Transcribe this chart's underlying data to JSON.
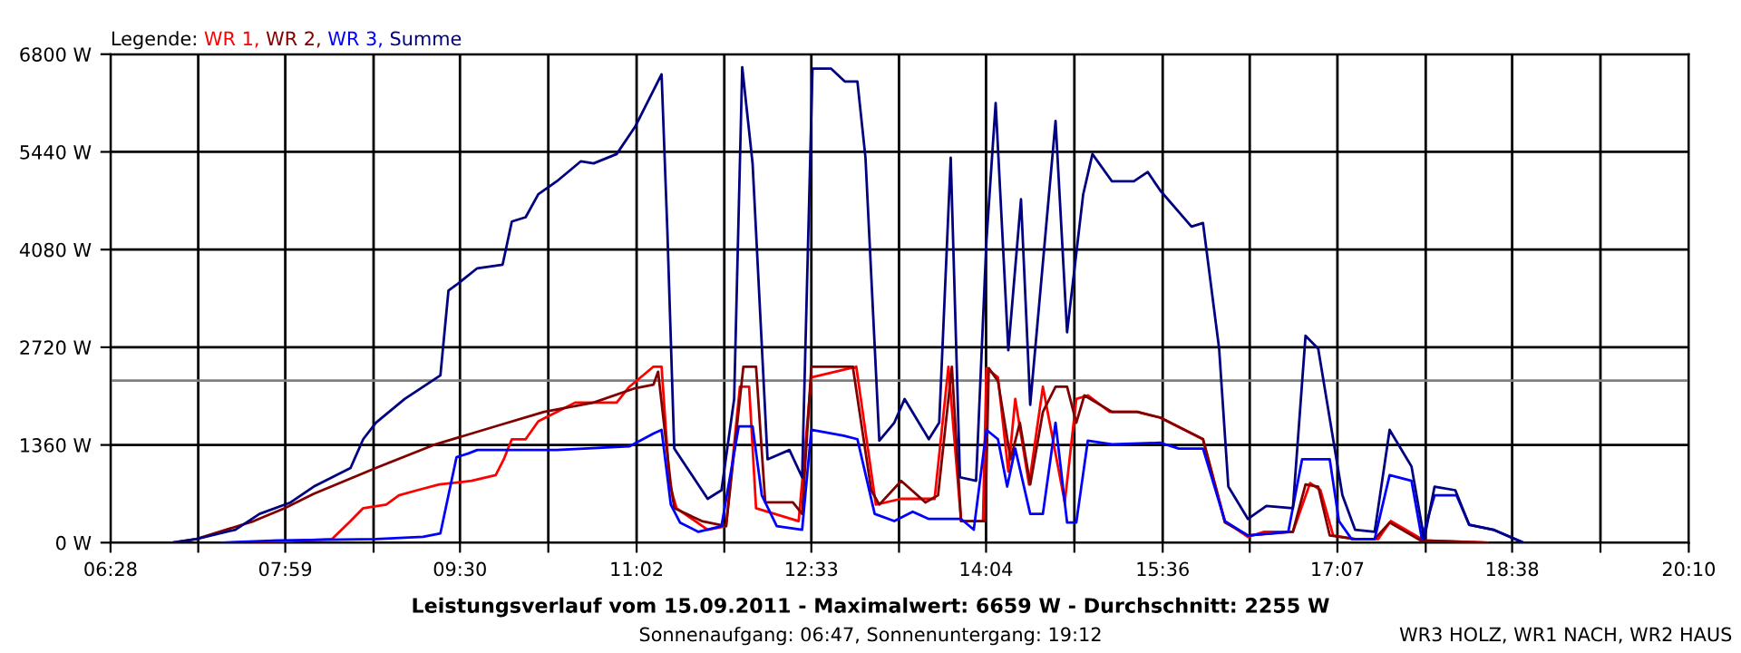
{
  "chart_data": {
    "type": "line",
    "title": "Leistungsverlauf vom 15.09.2011 - Maximalwert: 6659 W - Durchschnitt: 2255 W",
    "subtitle": "Sonnenaufgang: 06:47, Sonnenuntergang: 19:12",
    "annotations": [
      "WR3 HOLZ, WR1 NACH, WR2 HAUS"
    ],
    "legend_title": "Legende:",
    "legend": "top left",
    "grid": true,
    "marker": "none",
    "line_style": "solid",
    "xlim": [
      6.4667,
      20.1667
    ],
    "xticks": [
      {
        "value": 6.4667,
        "label": "06:28"
      },
      {
        "value": 7.2278,
        "label": null
      },
      {
        "value": 7.9833,
        "label": "07:59"
      },
      {
        "value": 8.75,
        "label": null
      },
      {
        "value": 9.5,
        "label": "09:30"
      },
      {
        "value": 10.2667,
        "label": null
      },
      {
        "value": 11.0333,
        "label": "11:02"
      },
      {
        "value": 11.7944,
        "label": null
      },
      {
        "value": 12.55,
        "label": "12:33"
      },
      {
        "value": 13.3111,
        "label": null
      },
      {
        "value": 14.0667,
        "label": "14:04"
      },
      {
        "value": 14.8333,
        "label": null
      },
      {
        "value": 15.6,
        "label": "15:36"
      },
      {
        "value": 16.3556,
        "label": null
      },
      {
        "value": 17.1167,
        "label": "17:07"
      },
      {
        "value": 17.8833,
        "label": null
      },
      {
        "value": 18.6333,
        "label": "18:38"
      },
      {
        "value": 19.4,
        "label": null
      },
      {
        "value": 20.1667,
        "label": "20:10"
      }
    ],
    "ylim": [
      0,
      6800
    ],
    "yticks": [
      {
        "value": 0,
        "label": "0 W"
      },
      {
        "value": 1360,
        "label": "1360 W"
      },
      {
        "value": 2720,
        "label": "2720 W"
      },
      {
        "value": 4080,
        "label": "4080 W"
      },
      {
        "value": 5440,
        "label": "5440 W"
      },
      {
        "value": 6800,
        "label": "6800 W"
      }
    ],
    "ref_lines": [
      {
        "axis": "y",
        "value": 2255,
        "color": "#808080"
      }
    ],
    "series": [
      {
        "name": "WR 1,",
        "color": "#ff0000",
        "x": [
          7.71,
          8.39,
          8.55,
          8.66,
          8.86,
          8.97,
          9.13,
          9.32,
          9.6,
          9.81,
          9.88,
          9.95,
          10.07,
          10.18,
          10.34,
          10.5,
          10.86,
          10.97,
          11.18,
          11.25,
          11.32,
          11.38,
          11.65,
          11.81,
          11.93,
          12.01,
          12.07,
          12.44,
          12.55,
          12.94,
          13.11,
          13.33,
          13.62,
          13.74,
          13.85,
          14.04,
          14.07,
          14.17,
          14.26,
          14.32,
          14.44,
          14.56,
          14.75,
          14.85,
          14.95,
          15.14,
          15.38,
          15.58,
          15.79,
          15.95,
          16.14,
          16.34,
          16.48,
          16.73,
          16.88,
          16.97,
          17.08,
          17.27,
          17.47,
          17.58,
          17.87,
          18.42
        ],
        "values": [
          0,
          50,
          300,
          480,
          530,
          660,
          730,
          810,
          860,
          940,
          1160,
          1440,
          1440,
          1690,
          1820,
          1950,
          1950,
          2170,
          2450,
          2450,
          810,
          480,
          180,
          230,
          2170,
          2170,
          480,
          300,
          2300,
          2450,
          530,
          610,
          610,
          2450,
          300,
          300,
          2430,
          2300,
          990,
          2000,
          810,
          2170,
          560,
          2000,
          2050,
          1820,
          1820,
          1740,
          1570,
          1440,
          300,
          80,
          150,
          150,
          830,
          730,
          100,
          50,
          50,
          300,
          30,
          0
        ]
      },
      {
        "name": "WR 2,",
        "color": "#800000",
        "x": [
          7.0,
          7.21,
          7.71,
          7.98,
          8.23,
          8.77,
          9.29,
          9.81,
          10.23,
          10.66,
          11.02,
          11.18,
          11.22,
          11.33,
          11.36,
          11.6,
          11.81,
          11.96,
          12.07,
          12.15,
          12.39,
          12.47,
          12.55,
          12.91,
          13.07,
          13.14,
          13.33,
          13.54,
          13.65,
          13.77,
          13.85,
          14.06,
          14.09,
          14.17,
          14.28,
          14.36,
          14.45,
          14.56,
          14.67,
          14.77,
          14.85,
          14.92,
          15.16,
          15.38,
          15.58,
          15.95,
          16.14,
          16.34,
          16.73,
          16.84,
          16.95,
          17.05,
          17.27,
          17.44,
          17.57,
          17.84,
          18.42
        ],
        "values": [
          0,
          50,
          300,
          480,
          680,
          1040,
          1370,
          1620,
          1820,
          1950,
          2150,
          2200,
          2380,
          810,
          480,
          300,
          230,
          2450,
          2450,
          560,
          560,
          400,
          2450,
          2450,
          730,
          530,
          860,
          560,
          660,
          2450,
          300,
          300,
          2430,
          2250,
          1160,
          1670,
          810,
          1820,
          2170,
          2170,
          1670,
          2050,
          1820,
          1820,
          1740,
          1440,
          280,
          100,
          150,
          810,
          780,
          100,
          50,
          50,
          280,
          30,
          0
        ]
      },
      {
        "name": "WR 3,",
        "color": "#0000ff",
        "x": [
          7.43,
          7.92,
          8.77,
          9.18,
          9.33,
          9.47,
          9.57,
          9.65,
          10.34,
          10.97,
          11.18,
          11.25,
          11.33,
          11.41,
          11.57,
          11.77,
          11.92,
          12.04,
          12.12,
          12.25,
          12.47,
          12.55,
          12.83,
          12.95,
          13.1,
          13.27,
          13.43,
          13.57,
          13.85,
          13.96,
          14.07,
          14.17,
          14.25,
          14.32,
          14.45,
          14.56,
          14.67,
          14.77,
          14.85,
          14.95,
          15.16,
          15.58,
          15.74,
          15.95,
          16.14,
          16.34,
          16.69,
          16.81,
          17.05,
          17.13,
          17.24,
          17.44,
          17.57,
          17.76,
          17.85,
          17.96,
          18.15,
          18.26,
          18.47,
          18.73
        ],
        "values": [
          0,
          30,
          50,
          80,
          130,
          1190,
          1240,
          1290,
          1290,
          1340,
          1520,
          1570,
          530,
          280,
          150,
          230,
          1620,
          1620,
          660,
          230,
          180,
          1570,
          1490,
          1440,
          400,
          300,
          430,
          330,
          330,
          180,
          1570,
          1440,
          780,
          1310,
          400,
          400,
          1670,
          280,
          280,
          1420,
          1370,
          1390,
          1310,
          1310,
          300,
          100,
          150,
          1160,
          1160,
          300,
          50,
          50,
          940,
          860,
          50,
          660,
          660,
          250,
          180,
          0
        ]
      },
      {
        "name": "Summe",
        "color": "#000080",
        "x": [
          7.0,
          7.21,
          7.55,
          7.76,
          8.03,
          8.23,
          8.55,
          8.66,
          8.77,
          9.02,
          9.33,
          9.4,
          9.47,
          9.65,
          9.87,
          9.95,
          10.07,
          10.18,
          10.34,
          10.55,
          10.66,
          10.86,
          11.02,
          11.25,
          11.3,
          11.36,
          11.65,
          11.77,
          11.88,
          11.95,
          12.04,
          12.17,
          12.36,
          12.47,
          12.56,
          12.72,
          12.84,
          12.95,
          13.02,
          13.14,
          13.27,
          13.36,
          13.57,
          13.66,
          13.76,
          13.84,
          13.98,
          14.07,
          14.15,
          14.26,
          14.37,
          14.45,
          14.67,
          14.77,
          14.91,
          14.99,
          15.16,
          15.35,
          15.47,
          15.58,
          15.85,
          15.95,
          16.09,
          16.17,
          16.34,
          16.5,
          16.73,
          16.84,
          16.95,
          17.16,
          17.27,
          17.44,
          17.57,
          17.76,
          17.87,
          17.96,
          18.14,
          18.26,
          18.47,
          18.73
        ],
        "values": [
          0,
          50,
          180,
          400,
          560,
          780,
          1040,
          1440,
          1670,
          2000,
          2330,
          3510,
          3590,
          3820,
          3870,
          4470,
          4530,
          4850,
          5030,
          5310,
          5280,
          5410,
          5790,
          6520,
          4350,
          1310,
          610,
          730,
          2000,
          6620,
          5280,
          1160,
          1290,
          910,
          6600,
          6600,
          6420,
          6420,
          5360,
          1420,
          1670,
          2000,
          1440,
          1670,
          5360,
          910,
          860,
          4200,
          6120,
          2680,
          4780,
          1920,
          5870,
          2930,
          4850,
          5410,
          5030,
          5030,
          5160,
          4900,
          4400,
          4450,
          2700,
          780,
          330,
          510,
          480,
          2880,
          2700,
          660,
          180,
          150,
          1570,
          1060,
          50,
          780,
          730,
          250,
          180,
          0
        ]
      }
    ]
  }
}
